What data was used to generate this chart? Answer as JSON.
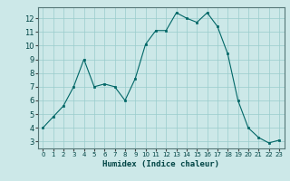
{
  "x": [
    0,
    1,
    2,
    3,
    4,
    5,
    6,
    7,
    8,
    9,
    10,
    11,
    12,
    13,
    14,
    15,
    16,
    17,
    18,
    19,
    20,
    21,
    22,
    23
  ],
  "y": [
    4.0,
    4.8,
    5.6,
    7.0,
    9.0,
    7.0,
    7.2,
    7.0,
    6.0,
    7.6,
    10.1,
    11.1,
    11.1,
    12.4,
    12.0,
    11.7,
    12.4,
    11.4,
    9.4,
    6.0,
    4.0,
    3.3,
    2.9,
    3.1
  ],
  "bg_color": "#cce8e8",
  "grid_color": "#99cccc",
  "line_color": "#006666",
  "marker_color": "#006666",
  "xlabel": "Humidex (Indice chaleur)",
  "xlim": [
    -0.5,
    23.5
  ],
  "ylim": [
    2.5,
    12.8
  ],
  "yticks": [
    3,
    4,
    5,
    6,
    7,
    8,
    9,
    10,
    11,
    12
  ],
  "xticks": [
    0,
    1,
    2,
    3,
    4,
    5,
    6,
    7,
    8,
    9,
    10,
    11,
    12,
    13,
    14,
    15,
    16,
    17,
    18,
    19,
    20,
    21,
    22,
    23
  ]
}
